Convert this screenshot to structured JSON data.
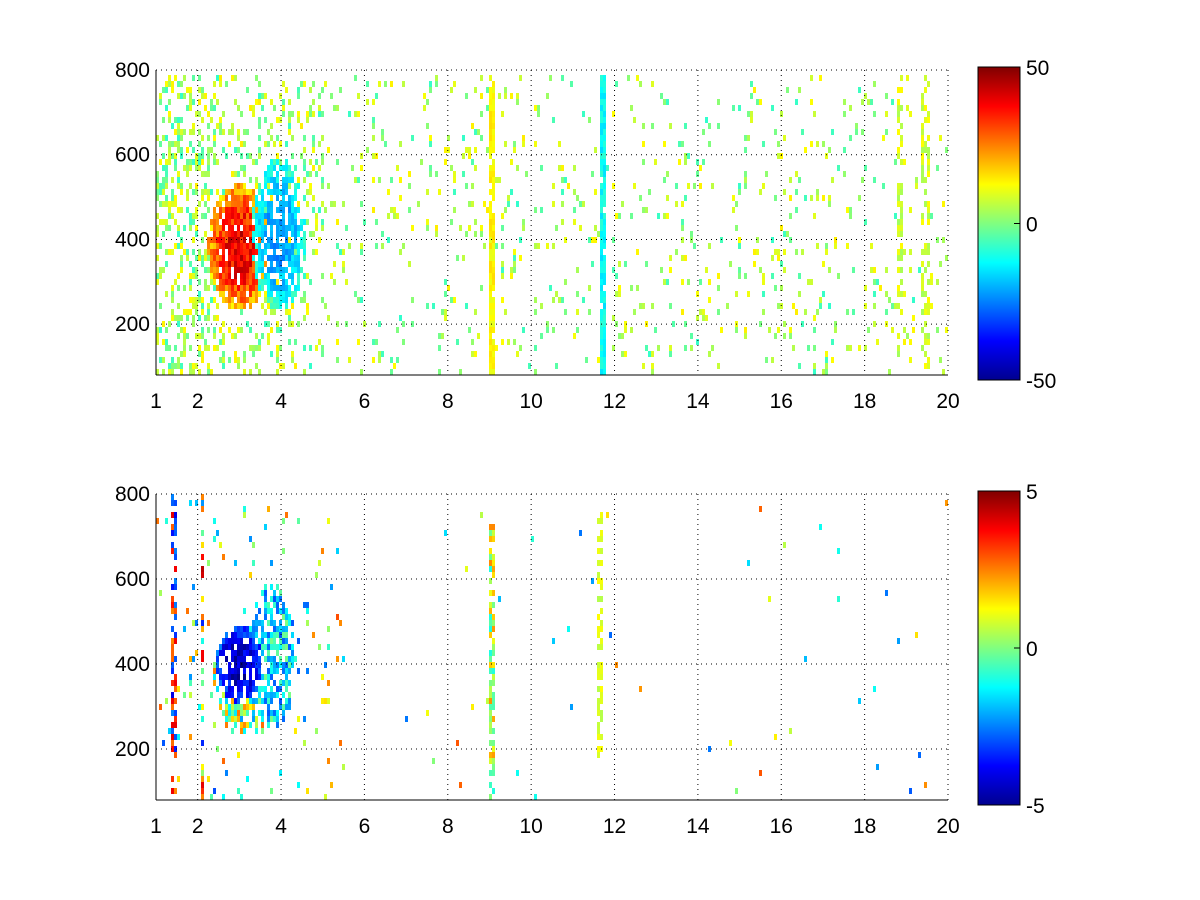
{
  "chart_data": [
    {
      "type": "heatmap",
      "title": "",
      "xlabel": "",
      "ylabel": "",
      "xlim": [
        1,
        20
      ],
      "ylim": [
        80,
        800
      ],
      "xticks": [
        1,
        2,
        4,
        6,
        8,
        10,
        12,
        14,
        16,
        18,
        20
      ],
      "yticks": [
        200,
        400,
        600,
        800
      ],
      "grid": true,
      "colormap": "jet",
      "clim": [
        -50,
        50
      ],
      "colorbar_ticks": [
        50,
        0,
        -50
      ],
      "colorbar_tick_labels": [
        "50",
        "0",
        "-50"
      ],
      "features": [
        {
          "region": "blob",
          "x_range": [
            2.3,
            3.6
          ],
          "y_range": [
            260,
            520
          ],
          "approx_value": 35
        },
        {
          "region": "blob",
          "x_range": [
            3.4,
            4.6
          ],
          "y_range": [
            250,
            560
          ],
          "approx_value": -18
        },
        {
          "region": "stripe",
          "x": 9.05,
          "y_range": [
            80,
            800
          ],
          "approx_value": 12
        },
        {
          "region": "stripe",
          "x": 11.7,
          "y_range": [
            80,
            800
          ],
          "approx_value": -12
        }
      ]
    },
    {
      "type": "heatmap",
      "title": "",
      "xlabel": "",
      "ylabel": "",
      "xlim": [
        1,
        20
      ],
      "ylim": [
        80,
        800
      ],
      "xticks": [
        1,
        2,
        4,
        6,
        8,
        10,
        12,
        14,
        16,
        18,
        20
      ],
      "yticks": [
        200,
        400,
        600,
        800
      ],
      "grid": true,
      "colormap": "jet",
      "clim": [
        -5,
        5
      ],
      "colorbar_ticks": [
        5,
        0,
        -5
      ],
      "colorbar_tick_labels": [
        "5",
        "0",
        "-5"
      ],
      "features": [
        {
          "region": "blob",
          "x_range": [
            2.4,
            3.4
          ],
          "y_range": [
            280,
            480
          ],
          "approx_value": -3.5
        },
        {
          "region": "blob",
          "x_range": [
            3.3,
            4.3
          ],
          "y_range": [
            250,
            560
          ],
          "approx_value": -1.5
        },
        {
          "region": "stripe",
          "x": 9.05,
          "y_range": [
            80,
            730
          ],
          "approx_value": 0.5
        },
        {
          "region": "stripe",
          "x": 11.65,
          "y_range": [
            180,
            760
          ],
          "approx_value": 0.8
        },
        {
          "region": "stripe",
          "x": 1.4,
          "y_range": [
            90,
            800
          ],
          "approx_value": -2
        }
      ]
    }
  ]
}
